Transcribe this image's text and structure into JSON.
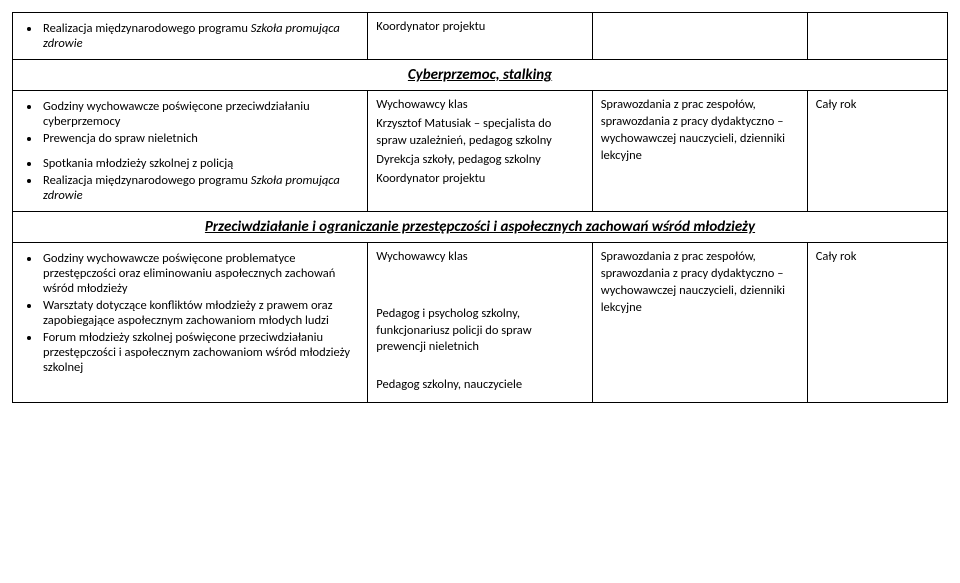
{
  "row0": {
    "items": [
      {
        "text": "Realizacja międzynarodowego programu",
        "italic_suffix": "Szkoła promująca zdrowie"
      }
    ],
    "col2": "Koordynator projektu"
  },
  "section1": "Cyberprzemoc, stalking",
  "row1": {
    "items": [
      "Godziny wychowawcze poświęcone przeciwdziałaniu cyberprzemocy",
      "Prewencja do spraw nieletnich",
      "",
      "Spotkania młodzieży szkolnej z policją",
      {
        "text": "Realizacja międzynarodowego programu",
        "italic_suffix": "Szkoła promująca zdrowie"
      }
    ],
    "col2_lines": [
      "Wychowawcy klas",
      "Krzysztof Matusiak – specjalista do spraw uzależnień, pedagog szkolny",
      "Dyrekcja szkoły, pedagog szkolny",
      "",
      "Koordynator projektu"
    ],
    "col3_lines": [
      "Sprawozdania z prac zespołów, sprawozdania z pracy dydaktyczno – wychowawczej nauczycieli, dzienniki lekcyjne"
    ],
    "col4": "Cały rok"
  },
  "section2": "Przeciwdziałanie i ograniczanie przestępczości i aspołecznych zachowań wśród młodzieży",
  "row2": {
    "items": [
      "Godziny wychowawcze poświęcone problematyce przestępczości oraz eliminowaniu aspołecznych zachowań wśród młodzieży",
      "Warsztaty dotyczące konfliktów młodzieży z prawem oraz zapobiegające aspołecznym zachowaniom młodych ludzi",
      "Forum młodzieży szkolnej poświęcone przeciwdziałaniu przestępczości i aspołecznym zachowaniom wśród młodzieży szkolnej"
    ],
    "col2_lines": [
      "Wychowawcy klas",
      "",
      "",
      "Pedagog i psycholog szkolny, funkcjonariusz policji do spraw prewencji nieletnich",
      "",
      "Pedagog szkolny, nauczyciele"
    ],
    "col3_lines": [
      "Sprawozdania z prac zespołów, sprawozdania z pracy dydaktyczno – wychowawczej nauczycieli, dzienniki lekcyjne"
    ],
    "col4": "Cały rok"
  }
}
